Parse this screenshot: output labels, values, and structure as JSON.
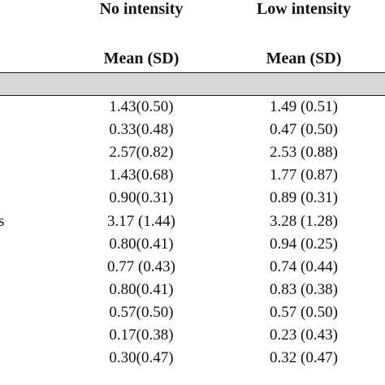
{
  "table": {
    "columns": [
      {
        "group": "No intensity",
        "stat": "Mean (SD)"
      },
      {
        "group": "Low intensity",
        "stat": "Mean (SD)"
      }
    ],
    "rows": [
      {
        "label": "",
        "values": [
          "1.43(0.50)",
          "1.49 (0.51)"
        ]
      },
      {
        "label": "",
        "values": [
          "0.33(0.48)",
          "0.47 (0.50)"
        ]
      },
      {
        "label": "",
        "values": [
          "2.57(0.82)",
          "2.53 (0.88)"
        ]
      },
      {
        "label": "",
        "values": [
          "1.43(0.68)",
          "1.77 (0.87)"
        ]
      },
      {
        "label": "",
        "values": [
          "0.90(0.31)",
          "0.89 (0.31)"
        ]
      },
      {
        "label": "s",
        "values": [
          "3.17 (1.44)",
          "3.28 (1.28)"
        ]
      },
      {
        "label": "",
        "values": [
          "0.80(0.41)",
          "0.94 (0.25)"
        ]
      },
      {
        "label": "",
        "values": [
          "0.77 (0.43)",
          "0.74 (0.44)"
        ]
      },
      {
        "label": "",
        "values": [
          "0.80(0.41)",
          "0.83 (0.38)"
        ]
      },
      {
        "label": "",
        "values": [
          "0.57(0.50)",
          "0.57 (0.50)"
        ]
      },
      {
        "label": "",
        "values": [
          "0.17(0.38)",
          "0.23 (0.43)"
        ]
      },
      {
        "label": "",
        "values": [
          "0.30(0.47)",
          "0.32 (0.47)"
        ]
      }
    ]
  },
  "colors": {
    "band": "#d8d8d8",
    "rule": "#1a1a1a"
  }
}
